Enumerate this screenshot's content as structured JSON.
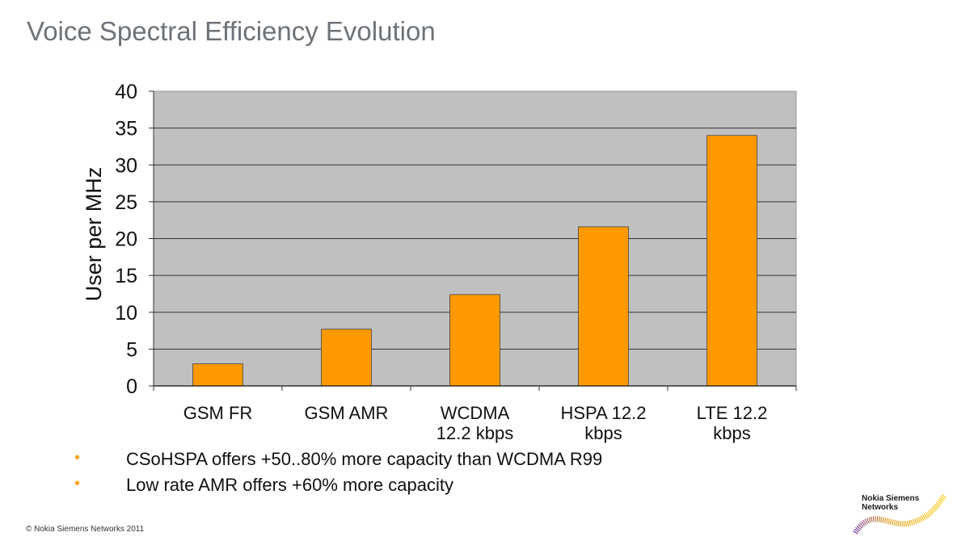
{
  "page": {
    "title": "Voice Spectral Efficiency Evolution",
    "bullets": [
      "CSoHSPA offers +50..80% more capacity than WCDMA R99",
      "Low rate AMR offers +60% more capacity"
    ],
    "bullet_glyph": "•",
    "copyright": "© Nokia Siemens Networks 2011",
    "logo": {
      "line1": "Nokia Siemens",
      "line2": "Networks"
    }
  },
  "colors": {
    "bar": "#ff9900",
    "plot_bg": "#c0c0c0",
    "title": "#6d7378",
    "bullet": "#f5a623"
  },
  "chart_data": {
    "type": "bar",
    "title": "",
    "xlabel": "",
    "ylabel": "User per MHz",
    "ylim": [
      0,
      40
    ],
    "yticks": [
      0,
      5,
      10,
      15,
      20,
      25,
      30,
      35,
      40
    ],
    "grid": true,
    "legend": "none",
    "categories": [
      [
        "GSM FR"
      ],
      [
        "GSM AMR"
      ],
      [
        "WCDMA",
        "12.2 kbps"
      ],
      [
        "HSPA 12.2",
        "kbps"
      ],
      [
        "LTE 12.2",
        "kbps"
      ]
    ],
    "values": [
      3.0,
      7.7,
      12.4,
      21.6,
      34.0
    ]
  }
}
